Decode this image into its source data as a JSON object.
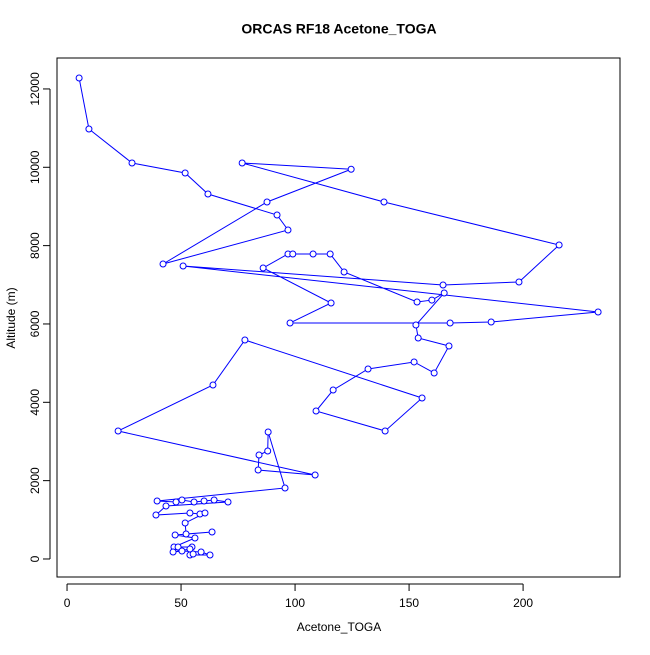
{
  "chart_data": {
    "type": "line",
    "markers": true,
    "title": "ORCAS RF18 Acetone_TOGA",
    "x_label": "Acetone_TOGA",
    "y_label": "Altitude (m)",
    "color": "#0000ff",
    "xlim": [
      -4.4,
      242.5
    ],
    "ylim": [
      -460,
      12790
    ],
    "xticks": [
      0,
      50,
      100,
      150,
      200
    ],
    "yticks": [
      0,
      2000,
      4000,
      6000,
      8000,
      10000,
      12000
    ],
    "x": [
      5.3,
      9.6,
      28.5,
      51.8,
      61.8,
      92.1,
      96.9,
      42.1,
      87.7,
      124.6,
      76.8,
      139,
      215.8,
      198.2,
      164.9,
      50.9,
      232.9,
      186,
      168,
      97.8,
      115.8,
      86,
      96.9,
      99,
      107.9,
      115.4,
      121.5,
      153.5,
      160,
      165.4,
      153,
      154,
      167.5,
      161,
      152.2,
      132,
      116.7,
      109.2,
      139.5,
      155.7,
      78,
      64,
      22.4,
      108.8,
      83.8,
      84.2,
      88,
      88.2,
      95.6,
      39.5,
      47.8,
      50.4,
      55.7,
      60.1,
      64.5,
      70.6,
      43.4,
      39,
      53.9,
      58.3,
      60.5,
      51.8,
      52.2,
      63.6,
      47.4,
      56.1,
      46.9,
      48.7,
      54.8,
      53.9,
      46.5,
      50.4,
      58.8,
      62.7,
      53.9,
      55.3
    ],
    "values": [
      12280,
      10978,
      10110,
      9855,
      9318,
      8782,
      8399,
      7531,
      9114,
      9950,
      10110,
      9114,
      8016,
      7072,
      6995,
      7480,
      6306,
      6050,
      6025,
      6025,
      6535,
      7429,
      7787,
      7787,
      7787,
      7787,
      7327,
      6561,
      6610,
      6791,
      5974,
      5642,
      5438,
      4749,
      5030,
      4850,
      4314,
      3778,
      3268,
      4110,
      5591,
      4442,
      3268,
      2144,
      2272,
      2655,
      2757,
      3242,
      1813,
      1481,
      1455,
      1506,
      1455,
      1481,
      1506,
      1455,
      1353,
      1123,
      1174,
      1149,
      1174,
      919,
      638,
      689,
      613,
      536,
      306,
      306,
      306,
      255,
      179,
      204,
      179,
      102,
      102,
      128
    ]
  }
}
